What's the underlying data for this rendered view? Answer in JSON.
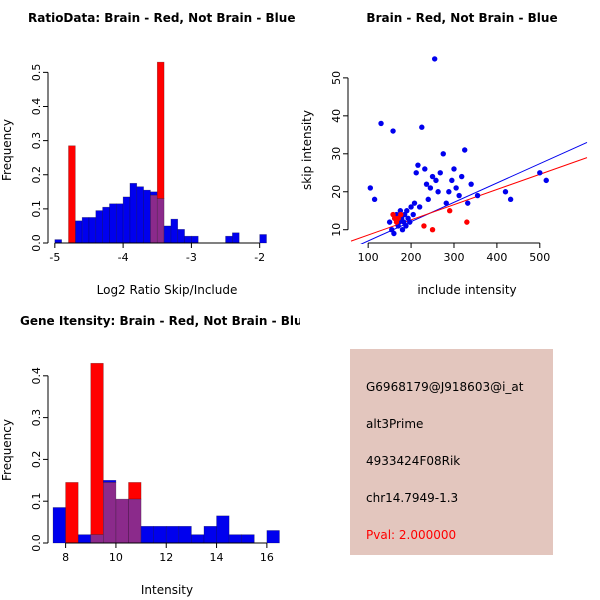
{
  "colors": {
    "red": "#ff0000",
    "blue": "#0000ee",
    "overlap": "#8b2a8b",
    "axis": "#000000",
    "panel_bg": "#e3c6be"
  },
  "chart_data": [
    {
      "id": "ratio-histogram",
      "type": "bar",
      "title": "RatioData: Brain - Red, Not Brain - Blue",
      "xlabel": "Log2 Ratio Skip/Include",
      "ylabel": "Frequency",
      "xlim": [
        -5.1,
        -1.6
      ],
      "ylim": [
        0,
        0.545
      ],
      "xticks": [
        -5,
        -4,
        -3,
        -2
      ],
      "xtick_labels": [
        "-5",
        "-4",
        "-3",
        "-2"
      ],
      "yticks": [
        0,
        0.1,
        0.2,
        0.3,
        0.4,
        0.5
      ],
      "ytick_labels": [
        "0.0",
        "0.1",
        "0.2",
        "0.3",
        "0.4",
        "0.5"
      ],
      "bin_width": 0.1,
      "series": [
        {
          "name": "Not Brain",
          "color": "blue",
          "bars": [
            [
              -5.0,
              0.01
            ],
            [
              -4.7,
              0.065
            ],
            [
              -4.6,
              0.075
            ],
            [
              -4.5,
              0.075
            ],
            [
              -4.4,
              0.095
            ],
            [
              -4.3,
              0.105
            ],
            [
              -4.2,
              0.115
            ],
            [
              -4.1,
              0.115
            ],
            [
              -4.0,
              0.135
            ],
            [
              -3.9,
              0.175
            ],
            [
              -3.8,
              0.165
            ],
            [
              -3.7,
              0.155
            ],
            [
              -3.6,
              0.15
            ],
            [
              -3.5,
              0.13
            ],
            [
              -3.4,
              0.05
            ],
            [
              -3.3,
              0.07
            ],
            [
              -3.2,
              0.04
            ],
            [
              -3.1,
              0.02
            ],
            [
              -3.0,
              0.02
            ],
            [
              -2.5,
              0.02
            ],
            [
              -2.4,
              0.03
            ],
            [
              -2.0,
              0.025
            ]
          ]
        },
        {
          "name": "Brain",
          "color": "red",
          "bars": [
            [
              -4.8,
              0.285
            ],
            [
              -3.6,
              0.14
            ],
            [
              -3.5,
              0.53
            ]
          ]
        }
      ]
    },
    {
      "id": "intensity-scatter",
      "type": "scatter",
      "title": "Brain - Red, Not Brain - Blue",
      "xlabel": "include intensity",
      "ylabel": "skip intensity",
      "xlim": [
        53,
        610
      ],
      "ylim": [
        6.5,
        55.5
      ],
      "xticks": [
        100,
        200,
        300,
        400,
        500
      ],
      "xtick_labels": [
        "100",
        "200",
        "300",
        "400",
        "500"
      ],
      "yticks": [
        10,
        20,
        30,
        40,
        50
      ],
      "ytick_labels": [
        "10",
        "20",
        "30",
        "40",
        "50"
      ],
      "series": [
        {
          "name": "Not Brain",
          "color": "blue",
          "points": [
            [
              105,
              21
            ],
            [
              115,
              18
            ],
            [
              130,
              38
            ],
            [
              158,
              36
            ],
            [
              150,
              12
            ],
            [
              155,
              10
            ],
            [
              160,
              9
            ],
            [
              162,
              13
            ],
            [
              166,
              14
            ],
            [
              170,
              11
            ],
            [
              172,
              12
            ],
            [
              175,
              15
            ],
            [
              178,
              13
            ],
            [
              180,
              10
            ],
            [
              183,
              12
            ],
            [
              185,
              14
            ],
            [
              188,
              11
            ],
            [
              190,
              15
            ],
            [
              193,
              13
            ],
            [
              197,
              12
            ],
            [
              200,
              16
            ],
            [
              205,
              14
            ],
            [
              208,
              17
            ],
            [
              212,
              25
            ],
            [
              216,
              27
            ],
            [
              220,
              16
            ],
            [
              225,
              37
            ],
            [
              232,
              26
            ],
            [
              236,
              22
            ],
            [
              240,
              18
            ],
            [
              245,
              21
            ],
            [
              250,
              24
            ],
            [
              255,
              55
            ],
            [
              258,
              23
            ],
            [
              263,
              20
            ],
            [
              268,
              25
            ],
            [
              275,
              30
            ],
            [
              282,
              17
            ],
            [
              288,
              20
            ],
            [
              295,
              23
            ],
            [
              300,
              26
            ],
            [
              305,
              21
            ],
            [
              312,
              19
            ],
            [
              318,
              24
            ],
            [
              325,
              31
            ],
            [
              332,
              17
            ],
            [
              340,
              22
            ],
            [
              355,
              19
            ],
            [
              420,
              20
            ],
            [
              432,
              18
            ],
            [
              500,
              25
            ],
            [
              515,
              23
            ]
          ]
        },
        {
          "name": "Brain",
          "color": "red",
          "points": [
            [
              158,
              14
            ],
            [
              162,
              13
            ],
            [
              166,
              12
            ],
            [
              170,
              13
            ],
            [
              176,
              14
            ],
            [
              230,
              11
            ],
            [
              250,
              10
            ],
            [
              290,
              15
            ],
            [
              330,
              12
            ]
          ]
        }
      ],
      "lines": [
        {
          "color": "blue",
          "x1": 60,
          "y1": 5,
          "x2": 610,
          "y2": 33
        },
        {
          "color": "red",
          "x1": 60,
          "y1": 7,
          "x2": 610,
          "y2": 29
        }
      ]
    },
    {
      "id": "gene-intensity-histogram",
      "type": "bar",
      "title": "Gene Itensity: Brain - Red, Not Brain - Blue",
      "xlabel": "Intensity",
      "ylabel": "Frequency",
      "xlim": [
        7.3,
        16.8
      ],
      "ylim": [
        0,
        0.445
      ],
      "xticks": [
        8,
        10,
        12,
        14,
        16
      ],
      "xtick_labels": [
        "8",
        "10",
        "12",
        "14",
        "16"
      ],
      "yticks": [
        0,
        0.1,
        0.2,
        0.3,
        0.4
      ],
      "ytick_labels": [
        "0.0",
        "0.1",
        "0.2",
        "0.3",
        "0.4"
      ],
      "bin_width": 0.5,
      "series": [
        {
          "name": "Not Brain",
          "color": "blue",
          "bars": [
            [
              7.5,
              0.085
            ],
            [
              8.5,
              0.02
            ],
            [
              9.0,
              0.02
            ],
            [
              9.5,
              0.15
            ],
            [
              10.0,
              0.105
            ],
            [
              10.5,
              0.105
            ],
            [
              11.0,
              0.04
            ],
            [
              11.5,
              0.04
            ],
            [
              12.0,
              0.04
            ],
            [
              12.5,
              0.04
            ],
            [
              13.0,
              0.02
            ],
            [
              13.5,
              0.04
            ],
            [
              14.0,
              0.065
            ],
            [
              14.5,
              0.02
            ],
            [
              15.0,
              0.02
            ],
            [
              16.0,
              0.03
            ]
          ]
        },
        {
          "name": "Brain",
          "color": "red",
          "bars": [
            [
              8.0,
              0.145
            ],
            [
              9.0,
              0.43
            ],
            [
              9.5,
              0.145
            ],
            [
              10.0,
              0.105
            ],
            [
              10.5,
              0.145
            ]
          ]
        }
      ]
    }
  ],
  "info_panel": {
    "lines": [
      {
        "text": "G6968179@J918603@i_at",
        "color": "black"
      },
      {
        "text": "alt3Prime",
        "color": "black"
      },
      {
        "text": "4933424F08Rik",
        "color": "black"
      },
      {
        "text": "chr14.7949-1.3",
        "color": "black"
      },
      {
        "text": "Pval: 2.000000",
        "color": "red"
      }
    ]
  }
}
